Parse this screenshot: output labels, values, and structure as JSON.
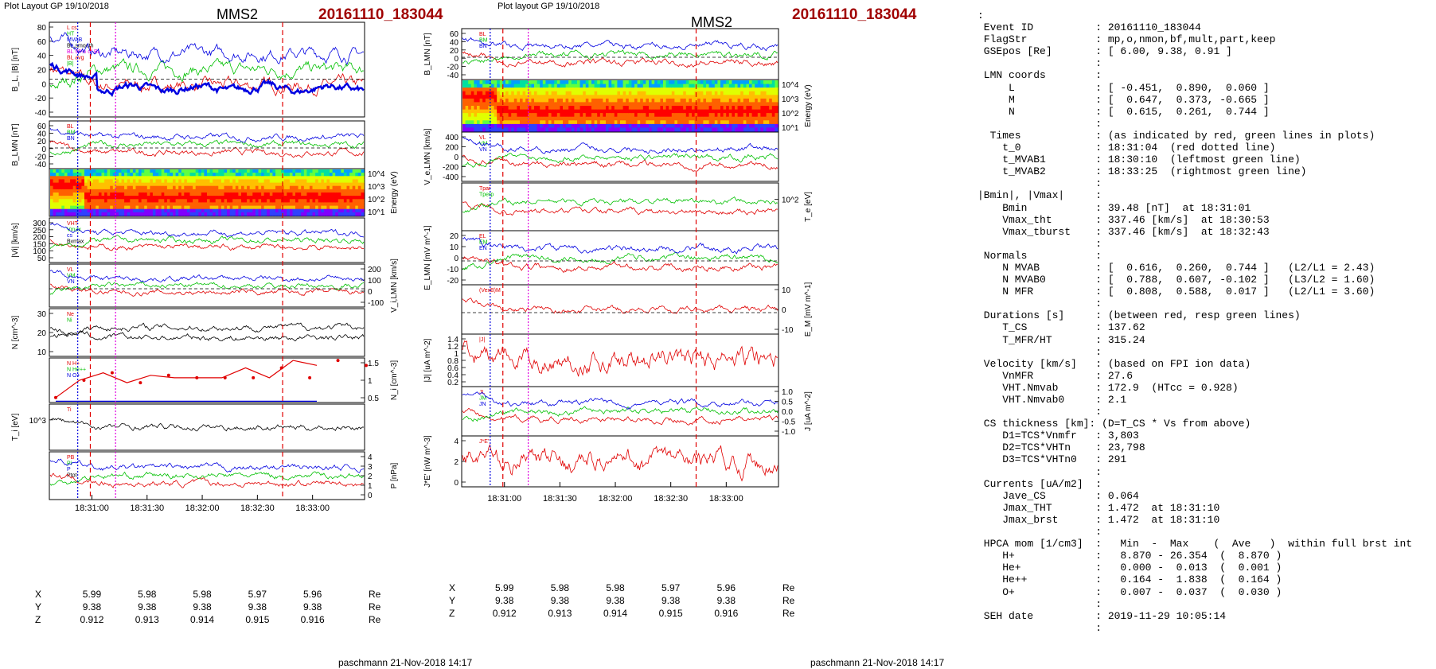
{
  "left": {
    "layout_label": "Plot Layout GP 19/10/2018",
    "title": "MMS2",
    "event": "20161110_183044",
    "footer": "paschmann 21-Nov-2018 14:17",
    "time_ticks": [
      "18:31:00",
      "18:31:30",
      "18:32:00",
      "18:32:30",
      "18:33:00"
    ],
    "coords": [
      {
        "axis": "X",
        "values": [
          "5.99",
          "5.98",
          "5.98",
          "5.97",
          "5.96"
        ],
        "unit": "Re"
      },
      {
        "axis": "Y",
        "values": [
          "9.38",
          "9.38",
          "9.38",
          "9.38",
          "9.38"
        ],
        "unit": "Re"
      },
      {
        "axis": "Z",
        "values": [
          "0.912",
          "0.913",
          "0.914",
          "0.915",
          "0.916"
        ],
        "unit": "Re"
      }
    ],
    "panels": [
      {
        "id": "b-abs",
        "ylabel": "B_L, |B| [nT]",
        "ticks": [
          "80",
          "60",
          "40",
          "20",
          "0",
          "-20",
          "-40"
        ],
        "side": "left",
        "legend": [
          "L cs",
          "HT",
          "MVAB",
          "BL,smooth",
          "BL 90% of BL",
          "BL avg",
          "|B|"
        ]
      },
      {
        "id": "b-lmn",
        "ylabel": "B_LMN [nT]",
        "ticks": [
          "60",
          "40",
          "20",
          "0",
          "-20",
          "-40"
        ],
        "side": "left",
        "legend": [
          "BL",
          "BM",
          "BN"
        ]
      },
      {
        "id": "ion-spec",
        "ylabel": "Energy (eV)",
        "ticks": [
          "10^4",
          "10^3",
          "10^2",
          "10^1"
        ],
        "side": "right",
        "legend": []
      },
      {
        "id": "vi-abs",
        "ylabel": "|Vi| [km/s]",
        "ticks": [
          "300",
          "250",
          "200",
          "150",
          "100",
          "50"
        ],
        "side": "left",
        "legend": [
          "VHT",
          "Vmax",
          "cs",
          "Bvmax"
        ]
      },
      {
        "id": "vi-lmn",
        "ylabel": "V_i,LMN [km/s]",
        "ticks": [
          "200",
          "100",
          "0",
          "-100"
        ],
        "side": "right",
        "legend": [
          "VL",
          "VM",
          "VN"
        ]
      },
      {
        "id": "density",
        "ylabel": "N [cm^-3]",
        "ticks": [
          "30",
          "20",
          "10"
        ],
        "side": "left",
        "legend": [
          "Ne",
          "Ni"
        ]
      },
      {
        "id": "hpca",
        "ylabel": "N_i [cm^-3]",
        "ticks": [
          "1.5",
          "1",
          "0.5"
        ],
        "side": "right",
        "legend": [
          "N H+",
          "N He++",
          "N O+"
        ]
      },
      {
        "id": "ti",
        "ylabel": "T_i [eV]",
        "ticks": [
          "10^3"
        ],
        "side": "left",
        "legend": [
          "Ti"
        ]
      },
      {
        "id": "pressure",
        "ylabel": "P [nPa]",
        "ticks": [
          "4",
          "3",
          "2",
          "1",
          "0"
        ],
        "side": "right",
        "legend": [
          "PB",
          "Pi",
          "P",
          "Ptot"
        ]
      }
    ]
  },
  "middle": {
    "layout_label": "Plot layout GP 19/10/2018",
    "title": "MMS2",
    "event": "20161110_183044",
    "footer": "paschmann 21-Nov-2018 14:17",
    "time_ticks": [
      "18:31:00",
      "18:31:30",
      "18:32:00",
      "18:32:30",
      "18:33:00"
    ],
    "coords": [
      {
        "axis": "X",
        "values": [
          "5.99",
          "5.98",
          "5.98",
          "5.97",
          "5.96"
        ],
        "unit": "Re"
      },
      {
        "axis": "Y",
        "values": [
          "9.38",
          "9.38",
          "9.38",
          "9.38",
          "9.38"
        ],
        "unit": "Re"
      },
      {
        "axis": "Z",
        "values": [
          "0.912",
          "0.913",
          "0.914",
          "0.915",
          "0.916"
        ],
        "unit": "Re"
      }
    ],
    "panels": [
      {
        "id": "b-lmn",
        "ylabel": "B_LMN [nT]",
        "ticks": [
          "60",
          "40",
          "20",
          "0",
          "-20",
          "-40"
        ],
        "side": "left",
        "legend": [
          "BL",
          "BM",
          "BN"
        ]
      },
      {
        "id": "e-spec",
        "ylabel": "Energy (eV)",
        "ticks": [
          "10^4",
          "10^3",
          "10^2",
          "10^1"
        ],
        "side": "right",
        "legend": []
      },
      {
        "id": "ve-lmn",
        "ylabel": "V_e,LMN [km/s]",
        "ticks": [
          "400",
          "200",
          "0",
          "-200",
          "-400"
        ],
        "side": "left",
        "legend": [
          "VL",
          "VM",
          "VN"
        ]
      },
      {
        "id": "te",
        "ylabel": "T_e [eV]",
        "ticks": [
          "10^2"
        ],
        "side": "right",
        "legend": [
          "Tpar",
          "Tperp"
        ]
      },
      {
        "id": "e-lmn",
        "ylabel": "E_LMN [mV m^-1]",
        "ticks": [
          "20",
          "10",
          "0",
          "-10",
          "-20"
        ],
        "side": "left",
        "legend": [
          "EL",
          "EM",
          "EN"
        ]
      },
      {
        "id": "em",
        "ylabel": "E_M [mV m^-1]",
        "ticks": [
          "10",
          "0",
          "-10"
        ],
        "side": "right",
        "legend": [
          "(VexB)M"
        ]
      },
      {
        "id": "j-abs",
        "ylabel": "|J| [uA m^-2]",
        "ticks": [
          "1.4",
          "1.2",
          "1",
          "0.8",
          "0.6",
          "0.4",
          "0.2"
        ],
        "side": "left",
        "legend": [
          "|J|"
        ]
      },
      {
        "id": "j-lmn",
        "ylabel": "J [uA m^-2]",
        "ticks": [
          "1.0",
          "0.5",
          "0.0",
          "-0.5",
          "-1.0"
        ],
        "side": "right",
        "legend": [
          "JL",
          "JM",
          "JN"
        ]
      },
      {
        "id": "je",
        "ylabel": "J*E' [nW m^-3]",
        "ticks": [
          "4",
          "2",
          "0"
        ],
        "side": "left",
        "legend": [
          "J*E'"
        ]
      }
    ]
  },
  "info_lines": [
    ":",
    " Event ID          : 20161110_183044",
    " FlagStr           : mp,o,nmon,bf,mult,part,keep",
    " GSEpos [Re]       : [ 6.00, 9.38, 0.91 ]",
    "                   :",
    " LMN coords        :",
    "     L             : [ -0.451,  0.890,  0.060 ]",
    "     M             : [  0.647,  0.373, -0.665 ]",
    "     N             : [  0.615,  0.261,  0.744 ]",
    "                   :",
    "  Times            : (as indicated by red, green lines in plots)",
    "    t_0            : 18:31:04  (red dotted line)",
    "    t_MVAB1        : 18:30:10  (leftmost green line)",
    "    t_MVAB2        : 18:33:25  (rightmost green line)",
    "                   :",
    "|Bmin|, |Vmax|     :",
    "    Bmin           : 39.48 [nT]  at 18:31:01",
    "    Vmax_tht       : 337.46 [km/s]  at 18:30:53",
    "    Vmax_tburst    : 337.46 [km/s]  at 18:32:43",
    "                   :",
    " Normals           :",
    "    N MVAB         : [  0.616,  0.260,  0.744 ]   (L2/L1 = 2.43)",
    "    N MVAB0        : [  0.788,  0.607, -0.102 ]   (L3/L2 = 1.60)",
    "    N MFR          : [  0.808,  0.588,  0.017 ]   (L2/L1 = 3.60)",
    "                   :",
    " Durations [s]     : (between red, resp green lines)",
    "    T_CS           : 137.62",
    "    T_MFR/HT       : 315.24",
    "                   :",
    " Velocity [km/s]   : (based on FPI ion data)",
    "    VnMFR          : 27.6",
    "    VHT.Nmvab      : 172.9  (HTcc = 0.928)",
    "    VHT.Nmvab0     : 2.1",
    "                   :",
    " CS thickness [km]: (D=T_CS * Vs from above)",
    "    D1=TCS*Vnmfr   : 3,803",
    "    D2=TCS*VHTn    : 23,798",
    "    D3=TCS*VHTn0   : 291",
    "                   :",
    " Currents [uA/m2]  :",
    "    Jave_CS        : 0.064",
    "    Jmax_THT       : 1.472  at 18:31:10",
    "    Jmax_brst      : 1.472  at 18:31:10",
    "                   :",
    " HPCA mom [1/cm3]  :   Min  -  Max    (  Ave   )  within full brst int",
    "    H+             :   8.870 - 26.354  (  8.870 )",
    "    He+            :   0.000 -  0.013  (  0.001 )",
    "    He++           :   0.164 -  1.838  (  0.164 )",
    "    O+             :   0.007 -  0.037  (  0.030 )",
    "                   :",
    " SEH date          : 2019-11-29 10:05:14",
    "                   :"
  ],
  "colors": {
    "red": "#e00000",
    "green": "#00c000",
    "blue": "#0000e0",
    "black": "#000000",
    "event": "#a00000",
    "magenta": "#e000e0"
  }
}
